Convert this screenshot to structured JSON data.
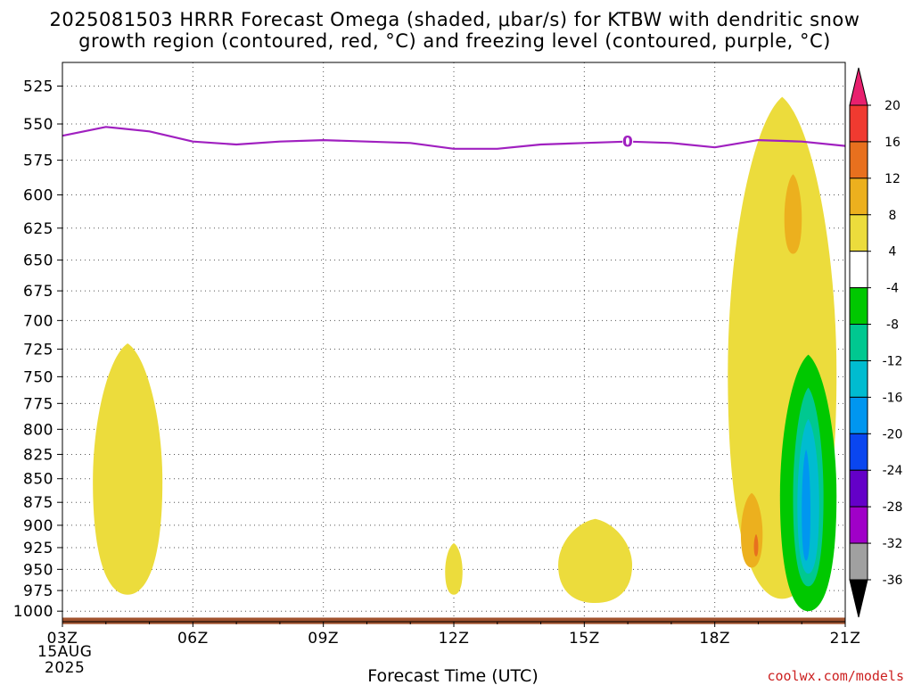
{
  "chart_data": {
    "type": "heatmap",
    "title_line1": "2025081503 HRRR Forecast Omega (shaded, μbar/s) for KTBW with dendritic snow",
    "title_line2": "growth region (contoured, red, °C) and freezing level (contoured, purple, °C)",
    "xlabel": "Forecast Time (UTC)",
    "ylabel": "",
    "x_ticks": [
      "03Z",
      "06Z",
      "09Z",
      "12Z",
      "15Z",
      "18Z",
      "21Z"
    ],
    "x_tick_hours": [
      3,
      6,
      9,
      12,
      15,
      18,
      21
    ],
    "x_date_day": "15AUG",
    "x_date_year": "2025",
    "xlim": [
      3,
      21
    ],
    "y_ticks": [
      525,
      550,
      575,
      600,
      625,
      650,
      675,
      700,
      725,
      750,
      775,
      800,
      825,
      850,
      875,
      900,
      925,
      950,
      975,
      1000
    ],
    "ylim": [
      1013,
      510
    ],
    "y_scale": "log-pressure",
    "grid": true,
    "freezing_level": {
      "label": "0",
      "color": "#a020c0",
      "hours": [
        3,
        4,
        5,
        6,
        7,
        8,
        9,
        10,
        11,
        12,
        13,
        14,
        15,
        16,
        17,
        18,
        19,
        20,
        21
      ],
      "pressure": [
        558,
        552,
        555,
        562,
        564,
        562,
        561,
        562,
        563,
        567,
        567,
        564,
        563,
        562,
        563,
        566,
        561,
        562,
        565
      ],
      "label_hour": 16,
      "label_pressure": 562
    },
    "colorbar": {
      "levels": [
        20,
        16,
        12,
        8,
        4,
        -4,
        -8,
        -12,
        -16,
        -20,
        -24,
        -28,
        -32,
        -36
      ],
      "colors": [
        "#e8206e",
        "#f03a30",
        "#e8701e",
        "#ecb01e",
        "#ecdc3c",
        "#ffffff",
        "#00c800",
        "#00c890",
        "#00bcd0",
        "#0096f0",
        "#0a46f0",
        "#6400c8",
        "#a000c8",
        "#a0a0a0",
        "#000000"
      ]
    },
    "regions": [
      {
        "category": "4 to 8",
        "color": "#ecdc3c",
        "time_hours": [
          3.7,
          5.3
        ],
        "pressure_range": [
          720,
          980
        ]
      },
      {
        "category": "4 to 8",
        "color": "#ecdc3c",
        "time_hours": [
          11.8,
          12.2
        ],
        "pressure_range": [
          920,
          980
        ]
      },
      {
        "category": "4 to 8",
        "color": "#ecdc3c",
        "time_hours": [
          14.4,
          16.1
        ],
        "pressure_range": [
          893,
          990
        ]
      },
      {
        "category": "4 to 8",
        "color": "#ecdc3c",
        "time_hours": [
          18.3,
          20.8
        ],
        "pressure_range": [
          532,
          985
        ]
      },
      {
        "category": "8 to 12",
        "color": "#ecb01e",
        "time_hours": [
          19.6,
          20.0
        ],
        "pressure_range": [
          585,
          645
        ]
      },
      {
        "category": "8 to 12",
        "color": "#ecb01e",
        "time_hours": [
          18.6,
          19.1
        ],
        "pressure_range": [
          865,
          948
        ]
      },
      {
        "category": "12 to 16",
        "color": "#e8701e",
        "time_hours": [
          18.9,
          19.0
        ],
        "pressure_range": [
          910,
          935
        ]
      },
      {
        "category": "-8 to -4",
        "color": "#00c800",
        "time_hours": [
          19.5,
          20.8
        ],
        "pressure_range": [
          730,
          1000
        ]
      },
      {
        "category": "-12 to -8",
        "color": "#00c890",
        "time_hours": [
          19.8,
          20.5
        ],
        "pressure_range": [
          760,
          970
        ]
      },
      {
        "category": "-16 to -12",
        "color": "#00bcd0",
        "time_hours": [
          19.9,
          20.4
        ],
        "pressure_range": [
          790,
          955
        ]
      },
      {
        "category": "-20 to -16",
        "color": "#0096f0",
        "time_hours": [
          20.0,
          20.2
        ],
        "pressure_range": [
          820,
          940
        ]
      }
    ],
    "surface": {
      "color": "#a0522d",
      "pressure_range": [
        1008,
        1016
      ]
    }
  },
  "credit": "coolwx.com/models"
}
